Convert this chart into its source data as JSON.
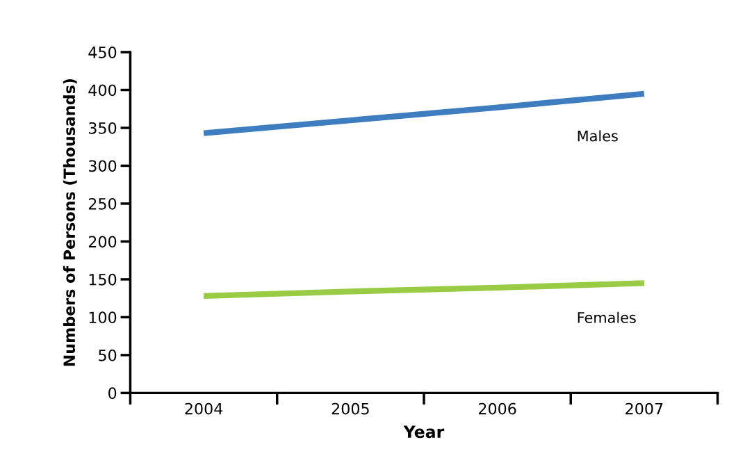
{
  "chart_data": {
    "type": "line",
    "xlabel": "Year",
    "ylabel": "Numbers of Persons (Thousands)",
    "categories": [
      "2004",
      "2005",
      "2006",
      "2007"
    ],
    "series": [
      {
        "name": "Males",
        "color": "#3e7dc0",
        "values": [
          343,
          360,
          377,
          395
        ]
      },
      {
        "name": "Females",
        "color": "#99cc44",
        "values": [
          128,
          134,
          139,
          145
        ]
      }
    ],
    "ylim": [
      0,
      450
    ],
    "yticks": [
      0,
      50,
      100,
      150,
      200,
      250,
      300,
      350,
      400,
      450
    ],
    "grid": false,
    "legend": false,
    "marker": "none",
    "line_style": "solid"
  }
}
